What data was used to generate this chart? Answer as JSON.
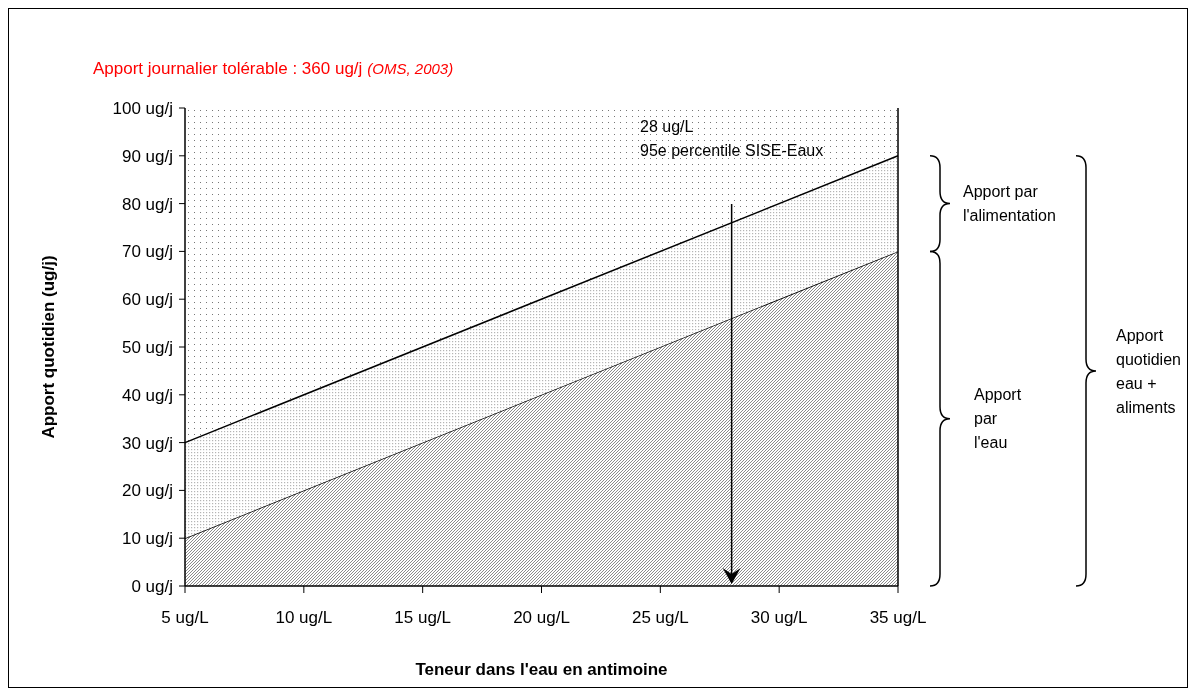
{
  "chart_data": {
    "type": "area",
    "stacked": true,
    "title": "Apport journalier tolérable : 360 ug/j",
    "subtitle": "(OMS, 2003)",
    "xlabel": "Teneur dans l'eau en antimoine",
    "ylabel": "Apport quotidien (ug/j)",
    "x": [
      5,
      35
    ],
    "series": [
      {
        "color": "#8c8c8c",
        "values": [
          10,
          70
        ]
      },
      {
        "color": "#b4b4b4",
        "values": [
          20,
          20
        ]
      }
    ],
    "xlim": [
      5,
      35
    ],
    "xticks": [
      {
        "value": 5,
        "label": "5 ug/L"
      },
      {
        "value": 10,
        "label": "10 ug/L"
      },
      {
        "value": 15,
        "label": "15 ug/L"
      },
      {
        "value": 20,
        "label": "20 ug/L"
      },
      {
        "value": 25,
        "label": "25 ug/L"
      },
      {
        "value": 30,
        "label": "30 ug/L"
      },
      {
        "value": 35,
        "label": "35 ug/L"
      }
    ],
    "ylim": [
      0,
      100
    ],
    "yticks": [
      {
        "value": 0,
        "label": "0 ug/j"
      },
      {
        "value": 10,
        "label": "10 ug/j"
      },
      {
        "value": 20,
        "label": "20 ug/j"
      },
      {
        "value": 30,
        "label": "30 ug/j"
      },
      {
        "value": 40,
        "label": "40 ug/j"
      },
      {
        "value": 50,
        "label": "50 ug/j"
      },
      {
        "value": 60,
        "label": "60 ug/j"
      },
      {
        "value": 70,
        "label": "70 ug/j"
      },
      {
        "value": 80,
        "label": "80 ug/j"
      },
      {
        "value": 90,
        "label": "90 ug/j"
      },
      {
        "value": 100,
        "label": "100 ug/j"
      }
    ],
    "ref_lines": [
      {
        "axis": "x",
        "value": 28,
        "label": "28 ug/L\n95e percentile SISE-Eaux",
        "color": "#000000"
      }
    ],
    "annotations": [
      "Apport par l'alimentation",
      "Apport par l'eau",
      "Apport quotidien eau + aliments"
    ]
  }
}
